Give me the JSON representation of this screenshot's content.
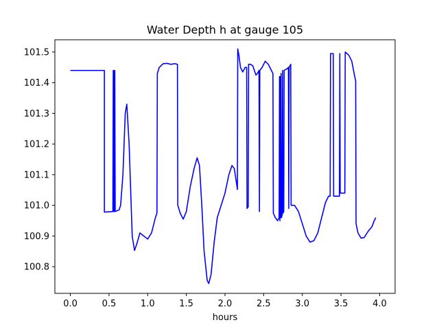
{
  "chart_data": {
    "type": "line",
    "title": "Water Depth h at gauge 105",
    "xlabel": "hours",
    "ylabel": "",
    "xlim": [
      -0.2,
      4.2
    ],
    "ylim": [
      100.713,
      101.54
    ],
    "grid": false,
    "colors": {
      "line": "#0000ff",
      "axes": "#000000",
      "background": "#ffffff"
    },
    "x_ticks": [
      {
        "value": 0.0,
        "label": "0.0"
      },
      {
        "value": 0.5,
        "label": "0.5"
      },
      {
        "value": 1.0,
        "label": "1.0"
      },
      {
        "value": 1.5,
        "label": "1.5"
      },
      {
        "value": 2.0,
        "label": "2.0"
      },
      {
        "value": 2.5,
        "label": "2.5"
      },
      {
        "value": 3.0,
        "label": "3.0"
      },
      {
        "value": 3.5,
        "label": "3.5"
      },
      {
        "value": 4.0,
        "label": "4.0"
      }
    ],
    "y_ticks": [
      {
        "value": 100.8,
        "label": "100.8"
      },
      {
        "value": 100.9,
        "label": "100.9"
      },
      {
        "value": 101.0,
        "label": "101.0"
      },
      {
        "value": 101.1,
        "label": "101.1"
      },
      {
        "value": 101.2,
        "label": "101.2"
      },
      {
        "value": 101.3,
        "label": "101.3"
      },
      {
        "value": 101.4,
        "label": "101.4"
      },
      {
        "value": 101.5,
        "label": "101.5"
      }
    ],
    "series": [
      {
        "points": [
          [
            0.0,
            101.44
          ],
          [
            0.44,
            101.44
          ],
          [
            0.44,
            100.978
          ],
          [
            0.55,
            100.98
          ],
          [
            0.555,
            101.44
          ],
          [
            0.56,
            100.98
          ],
          [
            0.565,
            101.44
          ],
          [
            0.57,
            100.98
          ],
          [
            0.575,
            101.44
          ],
          [
            0.58,
            100.98
          ],
          [
            0.6,
            100.982
          ],
          [
            0.63,
            100.985
          ],
          [
            0.65,
            101.0
          ],
          [
            0.68,
            101.1
          ],
          [
            0.71,
            101.3
          ],
          [
            0.73,
            101.33
          ],
          [
            0.76,
            101.2
          ],
          [
            0.8,
            100.9
          ],
          [
            0.83,
            100.853
          ],
          [
            0.86,
            100.875
          ],
          [
            0.9,
            100.91
          ],
          [
            0.95,
            100.9
          ],
          [
            1.0,
            100.89
          ],
          [
            1.05,
            100.91
          ],
          [
            1.1,
            100.96
          ],
          [
            1.12,
            100.975
          ],
          [
            1.125,
            101.43
          ],
          [
            1.15,
            101.45
          ],
          [
            1.2,
            101.462
          ],
          [
            1.25,
            101.463
          ],
          [
            1.3,
            101.46
          ],
          [
            1.35,
            101.462
          ],
          [
            1.385,
            101.46
          ],
          [
            1.39,
            101.0
          ],
          [
            1.42,
            100.975
          ],
          [
            1.46,
            100.955
          ],
          [
            1.5,
            100.98
          ],
          [
            1.55,
            101.06
          ],
          [
            1.6,
            101.12
          ],
          [
            1.64,
            101.155
          ],
          [
            1.67,
            101.13
          ],
          [
            1.7,
            101.0
          ],
          [
            1.73,
            100.85
          ],
          [
            1.77,
            100.755
          ],
          [
            1.79,
            100.745
          ],
          [
            1.82,
            100.775
          ],
          [
            1.86,
            100.88
          ],
          [
            1.9,
            100.96
          ],
          [
            1.95,
            101.0
          ],
          [
            2.0,
            101.04
          ],
          [
            2.05,
            101.1
          ],
          [
            2.09,
            101.13
          ],
          [
            2.12,
            101.12
          ],
          [
            2.15,
            101.07
          ],
          [
            2.16,
            101.052
          ],
          [
            2.165,
            101.51
          ],
          [
            2.18,
            101.49
          ],
          [
            2.2,
            101.45
          ],
          [
            2.23,
            101.435
          ],
          [
            2.26,
            101.45
          ],
          [
            2.28,
            101.45
          ],
          [
            2.285,
            100.99
          ],
          [
            2.3,
            100.995
          ],
          [
            2.305,
            101.46
          ],
          [
            2.33,
            101.46
          ],
          [
            2.36,
            101.455
          ],
          [
            2.4,
            101.425
          ],
          [
            2.42,
            101.43
          ],
          [
            2.44,
            101.44
          ],
          [
            2.445,
            100.98
          ],
          [
            2.45,
            101.44
          ],
          [
            2.48,
            101.45
          ],
          [
            2.52,
            101.47
          ],
          [
            2.56,
            101.46
          ],
          [
            2.6,
            101.44
          ],
          [
            2.62,
            101.43
          ],
          [
            2.625,
            100.975
          ],
          [
            2.65,
            100.96
          ],
          [
            2.68,
            100.95
          ],
          [
            2.7,
            100.96
          ],
          [
            2.705,
            101.42
          ],
          [
            2.71,
            100.95
          ],
          [
            2.715,
            101.42
          ],
          [
            2.72,
            100.96
          ],
          [
            2.725,
            101.43
          ],
          [
            2.73,
            100.96
          ],
          [
            2.74,
            100.97
          ],
          [
            2.745,
            101.44
          ],
          [
            2.75,
            100.975
          ],
          [
            2.76,
            100.98
          ],
          [
            2.765,
            101.44
          ],
          [
            2.8,
            101.445
          ],
          [
            2.82,
            101.45
          ],
          [
            2.825,
            100.99
          ],
          [
            2.83,
            101.45
          ],
          [
            2.85,
            101.46
          ],
          [
            2.855,
            101.0
          ],
          [
            2.9,
            101.0
          ],
          [
            2.95,
            100.98
          ],
          [
            3.0,
            100.94
          ],
          [
            3.05,
            100.9
          ],
          [
            3.1,
            100.88
          ],
          [
            3.15,
            100.885
          ],
          [
            3.2,
            100.91
          ],
          [
            3.25,
            100.96
          ],
          [
            3.3,
            101.01
          ],
          [
            3.34,
            101.03
          ],
          [
            3.36,
            101.03
          ],
          [
            3.365,
            101.495
          ],
          [
            3.4,
            101.495
          ],
          [
            3.405,
            101.03
          ],
          [
            3.45,
            101.03
          ],
          [
            3.48,
            101.03
          ],
          [
            3.485,
            101.495
          ],
          [
            3.49,
            101.04
          ],
          [
            3.55,
            101.04
          ],
          [
            3.555,
            101.5
          ],
          [
            3.6,
            101.49
          ],
          [
            3.64,
            101.47
          ],
          [
            3.67,
            101.43
          ],
          [
            3.69,
            101.405
          ],
          [
            3.695,
            100.94
          ],
          [
            3.72,
            100.91
          ],
          [
            3.76,
            100.893
          ],
          [
            3.8,
            100.895
          ],
          [
            3.85,
            100.915
          ],
          [
            3.9,
            100.93
          ],
          [
            3.93,
            100.95
          ],
          [
            3.95,
            100.96
          ]
        ]
      }
    ]
  }
}
